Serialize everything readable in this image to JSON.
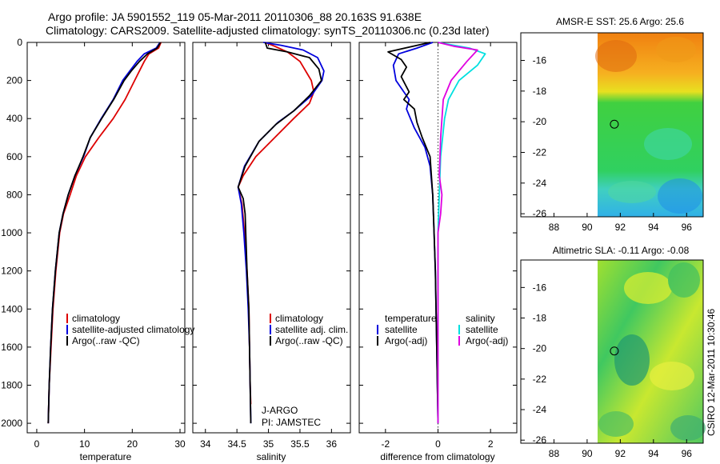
{
  "title_line1": "Argo profile: JA 5901552_119 05-Mar-2011 20110306_88 20.163S 91.638E",
  "title_line2": "Climatology: CARS2009. Satellite-adjusted climatology: synTS_20110306.nc (0.23d later)",
  "side_stamp": "CSIRO 12-Mar-2011 10:30:46",
  "colors": {
    "clim": "#dd0000",
    "sat": "#0000dd",
    "argo": "#000000",
    "cyan": "#00e0e0",
    "magenta": "#e000e0"
  },
  "chart_data": [
    {
      "type": "line",
      "name": "temperature",
      "xlabel": "temperature",
      "xlim": [
        -2,
        31
      ],
      "ylim": [
        2050,
        0
      ],
      "xticks": [
        0,
        10,
        20,
        30
      ],
      "yticks": [
        0,
        200,
        400,
        600,
        800,
        1000,
        1200,
        1400,
        1600,
        1800,
        2000
      ],
      "legend": [
        "climatology",
        "satellite-adjusted climatology",
        "Argo(..raw -QC)"
      ],
      "series": [
        {
          "name": "climatology",
          "color": "#dd0000",
          "points": [
            [
              26,
              0
            ],
            [
              25.5,
              30
            ],
            [
              23.5,
              60
            ],
            [
              22.5,
              100
            ],
            [
              21.5,
              150
            ],
            [
              20.5,
              200
            ],
            [
              18.5,
              300
            ],
            [
              16,
              400
            ],
            [
              13,
              500
            ],
            [
              10.2,
              600
            ],
            [
              8.3,
              700
            ],
            [
              7,
              800
            ],
            [
              5.6,
              900
            ],
            [
              4.8,
              1000
            ],
            [
              4,
              1200
            ],
            [
              3.4,
              1400
            ],
            [
              3,
              1600
            ],
            [
              2.6,
              1800
            ],
            [
              2.4,
              2000
            ]
          ]
        },
        {
          "name": "satellite",
          "color": "#0000dd",
          "points": [
            [
              25.8,
              0
            ],
            [
              25,
              30
            ],
            [
              22.5,
              60
            ],
            [
              21,
              100
            ],
            [
              19.5,
              150
            ],
            [
              18,
              200
            ],
            [
              16,
              300
            ],
            [
              13.5,
              400
            ],
            [
              11.2,
              500
            ],
            [
              9.8,
              600
            ],
            [
              8,
              700
            ],
            [
              6.6,
              800
            ],
            [
              5.5,
              900
            ],
            [
              4.7,
              1000
            ],
            [
              3.9,
              1200
            ],
            [
              3.3,
              1400
            ],
            [
              2.9,
              1600
            ],
            [
              2.6,
              1800
            ],
            [
              2.4,
              2000
            ]
          ]
        },
        {
          "name": "argo",
          "color": "#000000",
          "points": [
            [
              25.9,
              0
            ],
            [
              25.2,
              30
            ],
            [
              23.2,
              60
            ],
            [
              21.5,
              100
            ],
            [
              19.8,
              150
            ],
            [
              18.3,
              200
            ],
            [
              16.1,
              300
            ],
            [
              13.6,
              400
            ],
            [
              11.2,
              500
            ],
            [
              9.7,
              600
            ],
            [
              8,
              700
            ],
            [
              6.6,
              800
            ],
            [
              5.5,
              900
            ],
            [
              4.7,
              1000
            ],
            [
              3.9,
              1200
            ],
            [
              3.3,
              1400
            ],
            [
              2.9,
              1600
            ],
            [
              2.6,
              1800
            ],
            [
              2.4,
              2000
            ]
          ]
        }
      ]
    },
    {
      "type": "line",
      "name": "salinity",
      "xlabel": "salinity",
      "xlim": [
        33.8,
        36.3
      ],
      "ylim": [
        2050,
        0
      ],
      "xticks": [
        34,
        34.5,
        35,
        35.5,
        36
      ],
      "yticks": [
        0,
        200,
        400,
        600,
        800,
        1000,
        1200,
        1400,
        1600,
        1800,
        2000
      ],
      "legend": [
        "climatology",
        "satellite adj. clim.",
        "Argo(..raw -QC)"
      ],
      "annotation": [
        "J-ARGO",
        "PI: JAMSTEC"
      ],
      "series": [
        {
          "name": "climatology",
          "color": "#dd0000",
          "points": [
            [
              34.95,
              0
            ],
            [
              35.1,
              20
            ],
            [
              35.3,
              50
            ],
            [
              35.5,
              100
            ],
            [
              35.68,
              200
            ],
            [
              35.72,
              260
            ],
            [
              35.65,
              320
            ],
            [
              35.4,
              400
            ],
            [
              35.1,
              500
            ],
            [
              34.8,
              600
            ],
            [
              34.6,
              700
            ],
            [
              34.52,
              760
            ],
            [
              34.58,
              850
            ],
            [
              34.62,
              1000
            ],
            [
              34.66,
              1200
            ],
            [
              34.69,
              1400
            ],
            [
              34.7,
              1600
            ],
            [
              34.71,
              1800
            ],
            [
              34.72,
              1900
            ]
          ]
        },
        {
          "name": "satellite",
          "color": "#0000dd",
          "points": [
            [
              34.92,
              0
            ],
            [
              35.2,
              15
            ],
            [
              35.55,
              40
            ],
            [
              35.78,
              80
            ],
            [
              35.88,
              150
            ],
            [
              35.85,
              200
            ],
            [
              35.68,
              280
            ],
            [
              35.4,
              360
            ],
            [
              35.15,
              420
            ],
            [
              34.85,
              520
            ],
            [
              34.62,
              650
            ],
            [
              34.52,
              760
            ],
            [
              34.57,
              850
            ],
            [
              34.61,
              1000
            ],
            [
              34.65,
              1200
            ],
            [
              34.68,
              1400
            ],
            [
              34.7,
              1600
            ],
            [
              34.71,
              1800
            ],
            [
              34.72,
              2000
            ]
          ]
        },
        {
          "name": "argo",
          "color": "#000000",
          "points": [
            [
              34.95,
              0
            ],
            [
              34.98,
              30
            ],
            [
              35.3,
              50
            ],
            [
              35.65,
              80
            ],
            [
              35.8,
              140
            ],
            [
              35.84,
              200
            ],
            [
              35.65,
              280
            ],
            [
              35.4,
              360
            ],
            [
              35.12,
              430
            ],
            [
              34.85,
              520
            ],
            [
              34.63,
              650
            ],
            [
              34.52,
              760
            ],
            [
              34.6,
              820
            ],
            [
              34.63,
              900
            ],
            [
              34.64,
              1000
            ],
            [
              34.66,
              1200
            ],
            [
              34.69,
              1400
            ],
            [
              34.7,
              1600
            ],
            [
              34.71,
              1800
            ],
            [
              34.72,
              2000
            ]
          ]
        }
      ]
    },
    {
      "type": "line",
      "name": "difference",
      "xlabel": "difference from climatology",
      "xlim": [
        -3,
        3
      ],
      "ylim": [
        2050,
        0
      ],
      "xticks": [
        -2,
        0,
        2
      ],
      "yticks": [
        0,
        200,
        400,
        600,
        800,
        1000,
        1200,
        1400,
        1600,
        1800,
        2000
      ],
      "legend_titles": [
        "temperature",
        "salinity"
      ],
      "legend_left": [
        "satellite",
        "Argo(-adj)"
      ],
      "legend_right": [
        "satellite",
        "Argo(-adj)"
      ],
      "series": [
        {
          "name": "temp satellite",
          "color": "#0000dd",
          "points": [
            [
              -0.2,
              0
            ],
            [
              -0.8,
              30
            ],
            [
              -1.5,
              60
            ],
            [
              -1.7,
              120
            ],
            [
              -1.6,
              200
            ],
            [
              -1.1,
              300
            ],
            [
              -1.2,
              350
            ],
            [
              -0.9,
              450
            ],
            [
              -0.5,
              550
            ],
            [
              -0.3,
              650
            ],
            [
              -0.2,
              800
            ],
            [
              -0.15,
              1000
            ],
            [
              -0.1,
              1200
            ],
            [
              -0.05,
              1600
            ],
            [
              0,
              2000
            ]
          ]
        },
        {
          "name": "temp argo",
          "color": "#000000",
          "points": [
            [
              -0.3,
              0
            ],
            [
              -1.9,
              50
            ],
            [
              -1.4,
              90
            ],
            [
              -1.2,
              130
            ],
            [
              -1.4,
              180
            ],
            [
              -1.1,
              260
            ],
            [
              -1.3,
              300
            ],
            [
              -0.9,
              350
            ],
            [
              -0.8,
              420
            ],
            [
              -0.6,
              500
            ],
            [
              -0.3,
              600
            ],
            [
              -0.2,
              800
            ],
            [
              -0.15,
              1000
            ],
            [
              -0.1,
              1200
            ],
            [
              -0.05,
              1600
            ],
            [
              0,
              2000
            ]
          ]
        },
        {
          "name": "sal satellite",
          "color": "#00e0e0",
          "points": [
            [
              0,
              0
            ],
            [
              1.2,
              30
            ],
            [
              1.8,
              60
            ],
            [
              1.5,
              120
            ],
            [
              0.8,
              200
            ],
            [
              0.4,
              300
            ],
            [
              0.25,
              400
            ],
            [
              0.1,
              600
            ],
            [
              0.05,
              800
            ],
            [
              0,
              1000
            ],
            [
              0,
              1500
            ],
            [
              0,
              2000
            ]
          ]
        },
        {
          "name": "sal argo",
          "color": "#e000e0",
          "points": [
            [
              0,
              0
            ],
            [
              0.6,
              20
            ],
            [
              1.5,
              40
            ],
            [
              1.1,
              100
            ],
            [
              0.5,
              200
            ],
            [
              0.2,
              300
            ],
            [
              0.1,
              500
            ],
            [
              0.05,
              700
            ],
            [
              0.15,
              800
            ],
            [
              0.1,
              900
            ],
            [
              0,
              1000
            ],
            [
              0,
              1500
            ],
            [
              0,
              2000
            ]
          ]
        }
      ]
    },
    {
      "type": "heatmap",
      "name": "sst_map",
      "title": "AMSR-E SST: 25.6 Argo: 25.6",
      "xlim": [
        86,
        97
      ],
      "ylim": [
        -26.2,
        -14.2
      ],
      "xticks": [
        88,
        90,
        92,
        94,
        96
      ],
      "yticks": [
        -16,
        -18,
        -20,
        -22,
        -24,
        -26
      ],
      "marker": [
        91.64,
        -20.16
      ]
    },
    {
      "type": "heatmap",
      "name": "sla_map",
      "title": "Altimetric SLA: -0.11 Argo: -0.08",
      "xlim": [
        86,
        97
      ],
      "ylim": [
        -26.2,
        -14.2
      ],
      "xticks": [
        88,
        90,
        92,
        94,
        96
      ],
      "yticks": [
        -16,
        -18,
        -20,
        -22,
        -24,
        -26
      ],
      "marker": [
        91.64,
        -20.16
      ]
    }
  ]
}
